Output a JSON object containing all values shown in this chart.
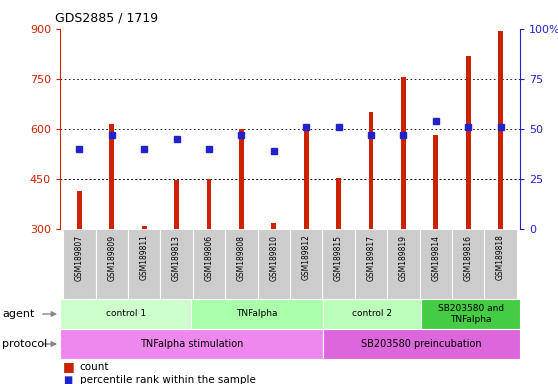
{
  "title": "GDS2885 / 1719",
  "samples": [
    "GSM189807",
    "GSM189809",
    "GSM189811",
    "GSM189813",
    "GSM189806",
    "GSM189808",
    "GSM189810",
    "GSM189812",
    "GSM189815",
    "GSM189817",
    "GSM189819",
    "GSM189814",
    "GSM189816",
    "GSM189818"
  ],
  "red_values": [
    415,
    615,
    308,
    448,
    450,
    600,
    318,
    608,
    452,
    650,
    755,
    582,
    820,
    895
  ],
  "blue_values": [
    40,
    47,
    40,
    45,
    40,
    47,
    39,
    51,
    51,
    47,
    47,
    54,
    51,
    51
  ],
  "ylim_left": [
    300,
    900
  ],
  "ylim_right": [
    0,
    100
  ],
  "yticks_left": [
    300,
    450,
    600,
    750,
    900
  ],
  "yticks_right": [
    0,
    25,
    50,
    75,
    100
  ],
  "grid_values": [
    450,
    600,
    750
  ],
  "groups": [
    {
      "label": "control 1",
      "start": 0,
      "end": 4,
      "color": "#ccffcc"
    },
    {
      "label": "TNFalpha",
      "start": 4,
      "end": 8,
      "color": "#aaffaa"
    },
    {
      "label": "control 2",
      "start": 8,
      "end": 11,
      "color": "#bbffbb"
    },
    {
      "label": "SB203580 and\nTNFalpha",
      "start": 11,
      "end": 14,
      "color": "#44cc44"
    }
  ],
  "protocols": [
    {
      "label": "TNFalpha stimulation",
      "start": 0,
      "end": 8,
      "color": "#ee88ee"
    },
    {
      "label": "SB203580 preincubation",
      "start": 8,
      "end": 14,
      "color": "#dd66dd"
    }
  ],
  "bar_color": "#cc2200",
  "square_color": "#2222cc",
  "bg_color": "#ffffff",
  "tick_color_left": "#cc2200",
  "tick_color_right": "#2222cc",
  "plot_bg": "#ffffff",
  "sample_box_color": "#cccccc",
  "bar_width": 0.15
}
